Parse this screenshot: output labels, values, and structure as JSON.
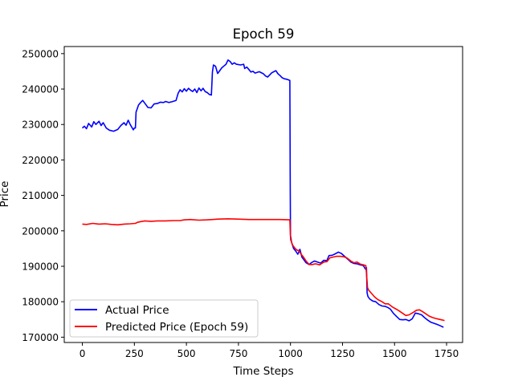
{
  "chart_data": {
    "type": "line",
    "title": "Epoch 59",
    "xlabel": "Time Steps",
    "ylabel": "Price",
    "xlim": [
      -87,
      1827
    ],
    "ylim": [
      168500,
      252000
    ],
    "xticks": [
      0,
      250,
      500,
      750,
      1000,
      1250,
      1500,
      1750
    ],
    "yticks": [
      170000,
      180000,
      190000,
      200000,
      210000,
      220000,
      230000,
      240000,
      250000
    ],
    "legend_position": "lower-left",
    "grid": false,
    "series": [
      {
        "name": "Actual Price",
        "color": "#0000ff",
        "points": [
          [
            0,
            229000
          ],
          [
            10,
            229500
          ],
          [
            20,
            228800
          ],
          [
            30,
            230300
          ],
          [
            45,
            229300
          ],
          [
            55,
            230800
          ],
          [
            65,
            230000
          ],
          [
            80,
            230900
          ],
          [
            90,
            229700
          ],
          [
            100,
            230500
          ],
          [
            115,
            229000
          ],
          [
            130,
            228400
          ],
          [
            150,
            228100
          ],
          [
            170,
            228600
          ],
          [
            185,
            229700
          ],
          [
            200,
            230500
          ],
          [
            210,
            229800
          ],
          [
            220,
            231200
          ],
          [
            230,
            230000
          ],
          [
            245,
            228500
          ],
          [
            250,
            229000
          ],
          [
            255,
            229000
          ],
          [
            258,
            233500
          ],
          [
            270,
            235500
          ],
          [
            280,
            236200
          ],
          [
            290,
            236800
          ],
          [
            300,
            236000
          ],
          [
            315,
            234800
          ],
          [
            330,
            234700
          ],
          [
            345,
            235800
          ],
          [
            360,
            235900
          ],
          [
            375,
            236300
          ],
          [
            390,
            236200
          ],
          [
            400,
            236500
          ],
          [
            415,
            236200
          ],
          [
            430,
            236400
          ],
          [
            450,
            236800
          ],
          [
            460,
            238800
          ],
          [
            470,
            239800
          ],
          [
            480,
            239200
          ],
          [
            490,
            240100
          ],
          [
            500,
            239400
          ],
          [
            510,
            240200
          ],
          [
            520,
            239700
          ],
          [
            530,
            239300
          ],
          [
            540,
            240000
          ],
          [
            550,
            239000
          ],
          [
            560,
            240300
          ],
          [
            570,
            239500
          ],
          [
            580,
            240200
          ],
          [
            590,
            239300
          ],
          [
            600,
            239000
          ],
          [
            610,
            238500
          ],
          [
            620,
            238300
          ],
          [
            625,
            244800
          ],
          [
            630,
            246800
          ],
          [
            640,
            246400
          ],
          [
            650,
            244400
          ],
          [
            660,
            245200
          ],
          [
            670,
            246000
          ],
          [
            680,
            246500
          ],
          [
            690,
            247000
          ],
          [
            700,
            248200
          ],
          [
            710,
            247800
          ],
          [
            720,
            247000
          ],
          [
            730,
            247400
          ],
          [
            740,
            247000
          ],
          [
            760,
            246800
          ],
          [
            775,
            247000
          ],
          [
            780,
            245800
          ],
          [
            790,
            246200
          ],
          [
            800,
            245500
          ],
          [
            810,
            244800
          ],
          [
            820,
            245000
          ],
          [
            830,
            244500
          ],
          [
            850,
            244900
          ],
          [
            870,
            244300
          ],
          [
            880,
            243700
          ],
          [
            890,
            243400
          ],
          [
            900,
            244000
          ],
          [
            910,
            244600
          ],
          [
            920,
            244900
          ],
          [
            930,
            245200
          ],
          [
            940,
            244300
          ],
          [
            950,
            243800
          ],
          [
            960,
            243200
          ],
          [
            970,
            242900
          ],
          [
            980,
            242800
          ],
          [
            990,
            242600
          ],
          [
            997,
            242400
          ],
          [
            999,
            212000
          ],
          [
            1000,
            198700
          ],
          [
            1005,
            196800
          ],
          [
            1015,
            195000
          ],
          [
            1025,
            194300
          ],
          [
            1035,
            193400
          ],
          [
            1045,
            194800
          ],
          [
            1055,
            192600
          ],
          [
            1065,
            191800
          ],
          [
            1075,
            191000
          ],
          [
            1090,
            190500
          ],
          [
            1100,
            191000
          ],
          [
            1115,
            191500
          ],
          [
            1130,
            191200
          ],
          [
            1145,
            190900
          ],
          [
            1160,
            191700
          ],
          [
            1175,
            191600
          ],
          [
            1185,
            193000
          ],
          [
            1200,
            193100
          ],
          [
            1215,
            193500
          ],
          [
            1230,
            194000
          ],
          [
            1245,
            193600
          ],
          [
            1260,
            192800
          ],
          [
            1275,
            192000
          ],
          [
            1290,
            191200
          ],
          [
            1305,
            190800
          ],
          [
            1320,
            190700
          ],
          [
            1335,
            190400
          ],
          [
            1350,
            190200
          ],
          [
            1360,
            189200
          ],
          [
            1365,
            189600
          ],
          [
            1368,
            182500
          ],
          [
            1372,
            181500
          ],
          [
            1380,
            180800
          ],
          [
            1395,
            180200
          ],
          [
            1410,
            180000
          ],
          [
            1425,
            179200
          ],
          [
            1440,
            178800
          ],
          [
            1455,
            178700
          ],
          [
            1470,
            178300
          ],
          [
            1480,
            177900
          ],
          [
            1495,
            176700
          ],
          [
            1510,
            175800
          ],
          [
            1525,
            175000
          ],
          [
            1540,
            174900
          ],
          [
            1555,
            175000
          ],
          [
            1570,
            174600
          ],
          [
            1585,
            175200
          ],
          [
            1600,
            176800
          ],
          [
            1615,
            176600
          ],
          [
            1630,
            176300
          ],
          [
            1645,
            175500
          ],
          [
            1660,
            174800
          ],
          [
            1675,
            174200
          ],
          [
            1690,
            173900
          ],
          [
            1705,
            173600
          ],
          [
            1720,
            173200
          ],
          [
            1735,
            172800
          ]
        ]
      },
      {
        "name": "Predicted Price (Epoch 59)",
        "color": "#ff0000",
        "points": [
          [
            0,
            201900
          ],
          [
            20,
            201800
          ],
          [
            50,
            202100
          ],
          [
            80,
            201900
          ],
          [
            110,
            202000
          ],
          [
            140,
            201800
          ],
          [
            170,
            201700
          ],
          [
            200,
            201900
          ],
          [
            230,
            202000
          ],
          [
            255,
            202100
          ],
          [
            265,
            202400
          ],
          [
            280,
            202600
          ],
          [
            300,
            202800
          ],
          [
            330,
            202700
          ],
          [
            360,
            202800
          ],
          [
            400,
            202800
          ],
          [
            440,
            202900
          ],
          [
            470,
            202900
          ],
          [
            490,
            203100
          ],
          [
            520,
            203200
          ],
          [
            560,
            203000
          ],
          [
            600,
            203100
          ],
          [
            625,
            203200
          ],
          [
            650,
            203300
          ],
          [
            700,
            203400
          ],
          [
            750,
            203300
          ],
          [
            800,
            203200
          ],
          [
            850,
            203200
          ],
          [
            900,
            203200
          ],
          [
            950,
            203200
          ],
          [
            997,
            203100
          ],
          [
            999,
            200000
          ],
          [
            1001,
            197500
          ],
          [
            1010,
            196000
          ],
          [
            1020,
            195200
          ],
          [
            1030,
            194600
          ],
          [
            1040,
            194400
          ],
          [
            1050,
            193500
          ],
          [
            1060,
            192800
          ],
          [
            1075,
            191500
          ],
          [
            1090,
            190500
          ],
          [
            1105,
            190500
          ],
          [
            1120,
            190700
          ],
          [
            1140,
            190400
          ],
          [
            1160,
            191200
          ],
          [
            1175,
            191300
          ],
          [
            1190,
            192400
          ],
          [
            1205,
            192600
          ],
          [
            1220,
            192800
          ],
          [
            1240,
            192800
          ],
          [
            1255,
            192700
          ],
          [
            1270,
            192400
          ],
          [
            1290,
            191500
          ],
          [
            1305,
            191000
          ],
          [
            1320,
            191200
          ],
          [
            1335,
            190600
          ],
          [
            1350,
            190400
          ],
          [
            1362,
            190200
          ],
          [
            1366,
            187500
          ],
          [
            1370,
            184000
          ],
          [
            1375,
            183300
          ],
          [
            1390,
            182300
          ],
          [
            1405,
            181300
          ],
          [
            1420,
            180600
          ],
          [
            1440,
            180000
          ],
          [
            1455,
            179400
          ],
          [
            1470,
            179400
          ],
          [
            1490,
            178500
          ],
          [
            1505,
            178000
          ],
          [
            1520,
            177500
          ],
          [
            1540,
            176700
          ],
          [
            1555,
            176100
          ],
          [
            1570,
            176300
          ],
          [
            1590,
            177000
          ],
          [
            1605,
            177600
          ],
          [
            1620,
            177700
          ],
          [
            1635,
            177200
          ],
          [
            1650,
            176600
          ],
          [
            1665,
            176000
          ],
          [
            1680,
            175600
          ],
          [
            1695,
            175300
          ],
          [
            1710,
            175100
          ],
          [
            1725,
            174900
          ],
          [
            1740,
            174700
          ]
        ]
      }
    ]
  }
}
